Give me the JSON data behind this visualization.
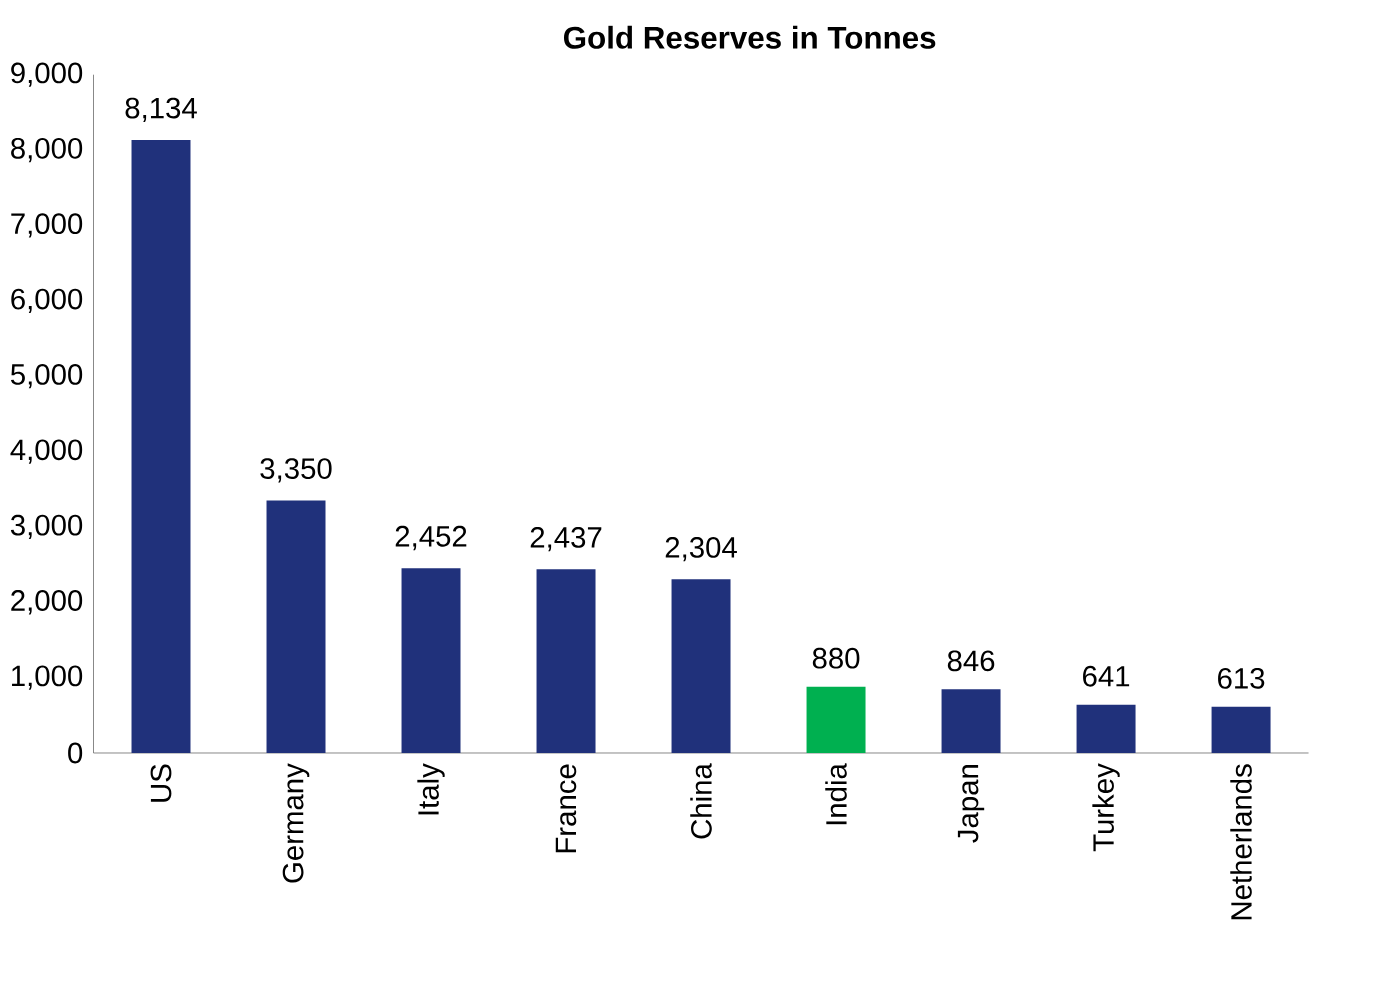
{
  "chart_data": {
    "type": "bar",
    "title": "Gold Reserves in Tonnes",
    "categories": [
      "US",
      "Germany",
      "Italy",
      "France",
      "China",
      "India",
      "Japan",
      "Turkey",
      "Netherlands"
    ],
    "values": [
      8134,
      3350,
      2452,
      2437,
      2304,
      880,
      846,
      641,
      613
    ],
    "value_labels": [
      "8,134",
      "3,350",
      "2,452",
      "2,437",
      "2,304",
      "880",
      "846",
      "641",
      "613"
    ],
    "colors": [
      "#20317b",
      "#20317b",
      "#20317b",
      "#20317b",
      "#20317b",
      "#00b050",
      "#20317b",
      "#20317b",
      "#20317b"
    ],
    "ylim": [
      0,
      9000
    ],
    "yticks": [
      {
        "value": 0,
        "label": "0"
      },
      {
        "value": 1000,
        "label": "1,000"
      },
      {
        "value": 2000,
        "label": "2,000"
      },
      {
        "value": 3000,
        "label": "3,000"
      },
      {
        "value": 4000,
        "label": "4,000"
      },
      {
        "value": 5000,
        "label": "5,000"
      },
      {
        "value": 6000,
        "label": "6,000"
      },
      {
        "value": 7000,
        "label": "7,000"
      },
      {
        "value": 8000,
        "label": "8,000"
      },
      {
        "value": 9000,
        "label": "9,000"
      }
    ],
    "grid": false
  }
}
